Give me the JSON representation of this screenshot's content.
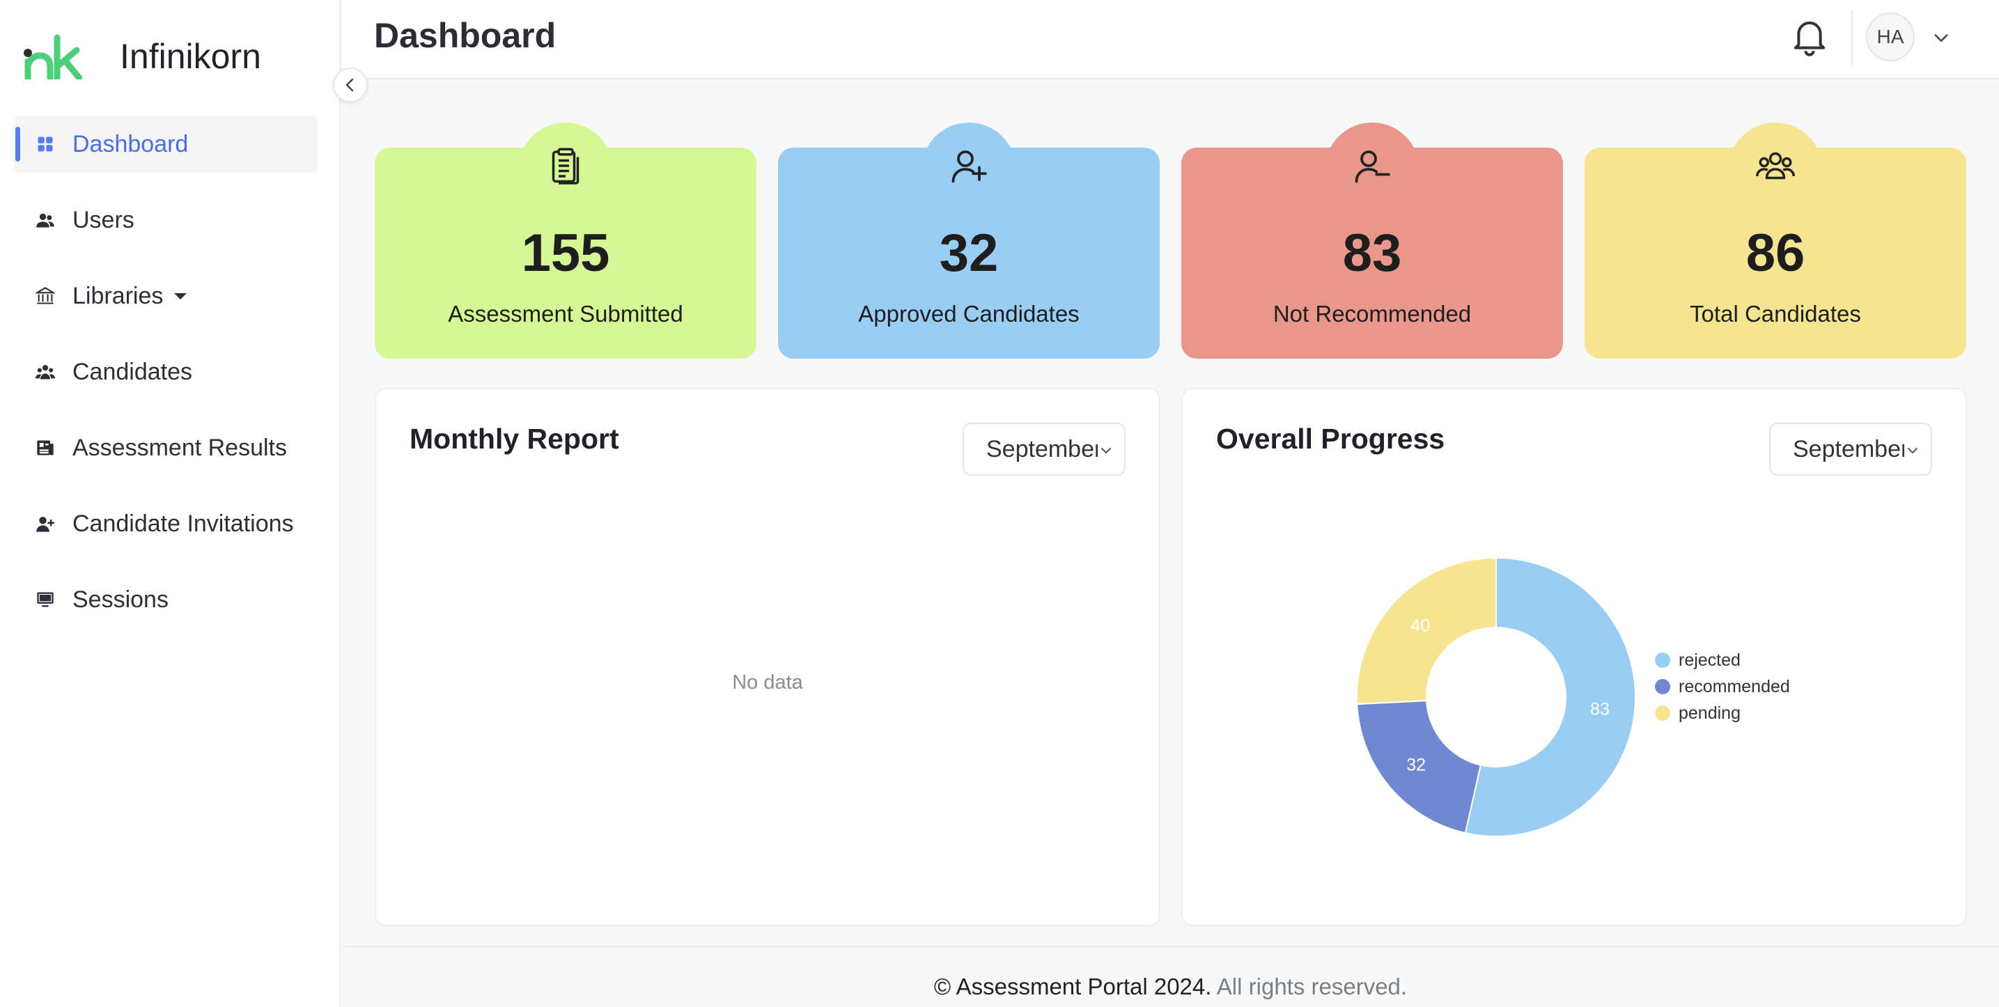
{
  "brand": {
    "name": "Infinikorn",
    "logo_colors": [
      "#2e2e2e",
      "#4cce7a"
    ]
  },
  "sidebar": {
    "items": [
      {
        "label": "Dashboard",
        "icon": "grid-icon",
        "active": true
      },
      {
        "label": "Users",
        "icon": "users-icon"
      },
      {
        "label": "Libraries",
        "icon": "library-icon",
        "has_dropdown": true
      },
      {
        "label": "Candidates",
        "icon": "group-icon"
      },
      {
        "label": "Assessment Results",
        "icon": "results-icon"
      },
      {
        "label": "Candidate Invitations",
        "icon": "user-plus-icon"
      },
      {
        "label": "Sessions",
        "icon": "monitor-icon"
      }
    ]
  },
  "header": {
    "title": "Dashboard",
    "avatar_initials": "HA"
  },
  "stats": [
    {
      "value": "155",
      "label": "Assessment Submitted",
      "color": "#d6f796",
      "icon": "clipboard-icon"
    },
    {
      "value": "32",
      "label": "Approved Candidates",
      "color": "#99cdf4",
      "icon": "user-plus-icon"
    },
    {
      "value": "83",
      "label": "Not Recommended",
      "color": "#ea978b",
      "icon": "user-minus-icon"
    },
    {
      "value": "86",
      "label": "Total Candidates",
      "color": "#f5e593",
      "icon": "group-icon"
    }
  ],
  "monthly_report": {
    "title": "Monthly Report",
    "select_value": "September",
    "empty_text": "No data"
  },
  "overall_progress": {
    "title": "Overall Progress",
    "select_value": "September"
  },
  "chart_data": {
    "type": "pie",
    "donut": true,
    "series": [
      {
        "name": "rejected",
        "value": 83,
        "color": "#99cdf4"
      },
      {
        "name": "recommended",
        "value": 32,
        "color": "#6f88d1"
      },
      {
        "name": "pending",
        "value": 40,
        "color": "#f5e593"
      }
    ],
    "legend_position": "right"
  },
  "footer": {
    "strong": "© Assessment Portal 2024.",
    "muted": "All rights reserved."
  }
}
